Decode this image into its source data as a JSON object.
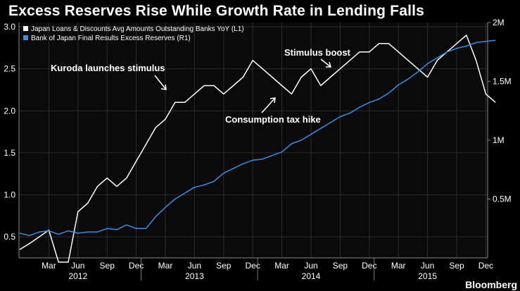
{
  "title": "Excess Reserves Rise While Growth Rate in Lending Falls",
  "brand": "Bloomberg",
  "chart_data": {
    "type": "line",
    "x_start": "2011-12",
    "x_labels": [
      "Mar",
      "Jun",
      "Sep",
      "Dec",
      "Mar",
      "Jun",
      "Sep",
      "Dec",
      "Mar",
      "Jun",
      "Sep",
      "Dec",
      "Mar",
      "Jun",
      "Sep",
      "Dec"
    ],
    "x_label_months": [
      3,
      6,
      9,
      12,
      15,
      18,
      21,
      24,
      27,
      30,
      33,
      36,
      39,
      42,
      45,
      48
    ],
    "year_labels": [
      {
        "label": "2012",
        "month": 6
      },
      {
        "label": "2013",
        "month": 18
      },
      {
        "label": "2014",
        "month": 30
      },
      {
        "label": "2015",
        "month": 42
      }
    ],
    "y_left": {
      "ylim": [
        0.25,
        3.05
      ],
      "ticks": [
        0.5,
        1.0,
        1.5,
        2.0,
        2.5,
        3.0
      ],
      "tick_labels": [
        "0.5",
        "1.0",
        "1.5",
        "2.0",
        "2.5",
        "3.0"
      ]
    },
    "y_right": {
      "ylim": [
        0,
        2000000
      ],
      "ticks": [
        500000,
        1000000,
        1500000,
        2000000
      ],
      "tick_labels": [
        "0.5M",
        "1M",
        "1.5M",
        "2M"
      ]
    },
    "grid": true,
    "legend_position": "top-left",
    "series": [
      {
        "name": "Japan Loans & Discounts Avg Amounts Outstanding Banks YoY  (L1)",
        "axis": "left",
        "color": "#ffffff",
        "values": [
          0.35,
          0.42,
          0.5,
          0.58,
          0.2,
          0.2,
          0.8,
          0.9,
          1.1,
          1.2,
          1.1,
          1.2,
          1.4,
          1.6,
          1.8,
          1.9,
          2.1,
          2.1,
          2.2,
          2.3,
          2.3,
          2.2,
          2.3,
          2.4,
          2.6,
          2.5,
          2.4,
          2.3,
          2.2,
          2.4,
          2.5,
          2.3,
          2.4,
          2.5,
          2.6,
          2.7,
          2.7,
          2.8,
          2.8,
          2.7,
          2.6,
          2.5,
          2.4,
          2.6,
          2.7,
          2.8,
          2.9,
          2.6,
          2.2,
          2.1
        ]
      },
      {
        "name": "Bank of Japan Final Results Excess Reserves  (R1)",
        "axis": "right",
        "color": "#3d8ee0",
        "values": [
          210000,
          190000,
          220000,
          230000,
          200000,
          230000,
          210000,
          220000,
          220000,
          250000,
          240000,
          280000,
          250000,
          250000,
          350000,
          430000,
          500000,
          550000,
          600000,
          620000,
          650000,
          720000,
          760000,
          800000,
          830000,
          840000,
          870000,
          900000,
          970000,
          1000000,
          1050000,
          1100000,
          1150000,
          1200000,
          1230000,
          1280000,
          1320000,
          1350000,
          1400000,
          1470000,
          1520000,
          1580000,
          1650000,
          1700000,
          1750000,
          1780000,
          1800000,
          1830000,
          1840000,
          1850000
        ]
      }
    ],
    "annotations": [
      {
        "text": "Kuroda launches stimulus",
        "month": 15
      },
      {
        "text": "Consumption tax hike",
        "month": 28
      },
      {
        "text": "Stimulus boost",
        "month": 34
      }
    ]
  }
}
